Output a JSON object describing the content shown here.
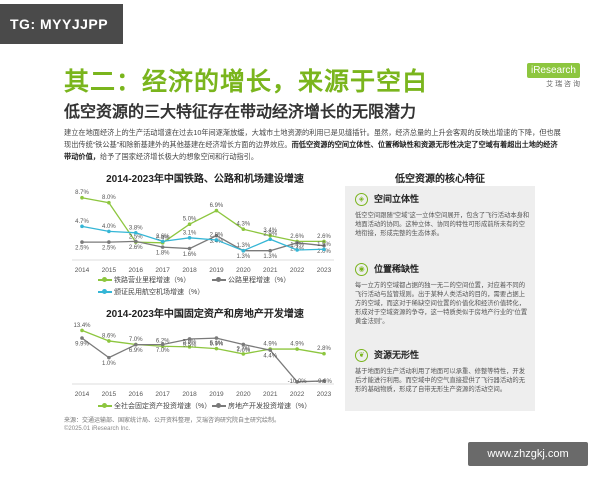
{
  "tag": "TG: MYYJJPP",
  "logo": {
    "brand": "iResearch",
    "sub": "艾 瑞 咨 询"
  },
  "title": "其二：经济的增长，来源于空白",
  "subtitle": "低空资源的三大特征存在带动经济增长的无限潜力",
  "intro": "建立在地面经济上的生产活动增速在过去10年间逐渐放缓，大城市土地资源的利用已是见缝插针。虽然，经济总量的上升会客观的反映出增速的下降，但也展现出传统“铁公基”和除新基建外的其他基建在经济增长方面的边界效应。",
  "intro_bold": "而低空资源的空间立体性、位置稀缺性和资源无形性决定了空域有着超出土地的经济带动价值，",
  "intro_tail": "给予了国家经济增长极大的想象空间和行动指引。",
  "chart1": {
    "title": "2014-2023年中国铁路、公路和机场建设增速",
    "legend": [
      "铁路营业里程增速（%）",
      "公路里程增速（%）",
      "颁证民用航空机场增速（%）"
    ]
  },
  "chart2": {
    "title": "2014-2023年中国固定资产和房地产开发增速",
    "legend": [
      "全社会固定资产投资增速（%）",
      "房地产开发投资增速（%）"
    ]
  },
  "chart_data": [
    {
      "type": "line",
      "title": "2014-2023年中国铁路、公路和机场建设增速",
      "x": [
        "2014",
        "2015",
        "2016",
        "2017",
        "2018",
        "2019",
        "2020",
        "2021",
        "2022",
        "2023"
      ],
      "series": [
        {
          "name": "铁路营业里程增速（%）",
          "color": "#8dc63f",
          "values": [
            8.7,
            8.0,
            2.5,
            2.4,
            5.0,
            6.9,
            4.3,
            3.4,
            2.6,
            2.6
          ],
          "labels": [
            "8.7%",
            "8.0%",
            "2.5%",
            "2.4%",
            "5.0%",
            "6.9%",
            "4.3%",
            "3.4%",
            "2.6%",
            "2.6%"
          ]
        },
        {
          "name": "公路里程增速（%）",
          "color": "#7a7a7a",
          "values": [
            2.5,
            2.5,
            2.6,
            1.8,
            1.6,
            3.4,
            1.3,
            1.3,
            2.4,
            2.0
          ],
          "labels": [
            "2.5%",
            "2.5%",
            "2.6%",
            "1.8%",
            "1.6%",
            "3.4%",
            "1.3%",
            "1.3%",
            "2.4%",
            "2.0%"
          ]
        },
        {
          "name": "颁证民用航空机场增速（%）",
          "color": "#35b6d6",
          "values": [
            4.7,
            4.0,
            3.8,
            2.6,
            3.1,
            2.8,
            1.3,
            2.9,
            1.4,
            1.5
          ],
          "labels": [
            "4.7%",
            "4.0%",
            "3.8%",
            "2.6%",
            "3.1%",
            "2.8%",
            "1.3%",
            "2.9%",
            "1.4%",
            "1.5%"
          ]
        }
      ]
    },
    {
      "type": "line",
      "title": "2014-2023年中国固定资产和房地产开发增速",
      "x": [
        "2014",
        "2015",
        "2016",
        "2017",
        "2018",
        "2019",
        "2020",
        "2021",
        "2022",
        "2023"
      ],
      "series": [
        {
          "name": "全社会固定资产投资增速（%）",
          "color": "#8dc63f",
          "values": [
            13.4,
            8.6,
            7.0,
            6.2,
            5.9,
            5.1,
            2.7,
            4.9,
            4.9,
            2.8
          ],
          "labels": [
            "13.4%",
            "8.6%",
            "7.0%",
            "6.2%",
            "5.9%",
            "5.1%",
            "2.7%",
            "4.9%",
            "4.9%",
            "2.8%"
          ]
        },
        {
          "name": "房地产开发投资增速（%）",
          "color": "#7a7a7a",
          "values": [
            9.9,
            1.0,
            6.9,
            7.0,
            9.5,
            9.9,
            7.0,
            4.4,
            -10.0,
            -9.6
          ],
          "labels": [
            "9.9%",
            "1.0%",
            "6.9%",
            "7.0%",
            "9.5%",
            "9.9%",
            "7.0%",
            "4.4%",
            "-10.0%",
            "-9.6%"
          ]
        }
      ]
    }
  ],
  "panel": {
    "title": "低空资源的核心特征",
    "features": [
      {
        "heading": "空间立体性",
        "body": "低空空间跟随“空域”这一立体空间展开，包含了飞行活动本身和地面活动的协同。这种立体、协同的特性可形成前所未有的空地衔接，形成完整的生态体系。"
      },
      {
        "heading": "位置稀缺性",
        "body": "每一立方的空域都占据的独一无二的空间位置，对应着不同的飞行活动与监管规则。出于某种人类活动的目的，需要占据上方的空域，而这对于稀缺空间位置的价值化和经济价值转化，形成对于空域资源的争夺，这一特质类似于房地产行业的“位置黄金法则”。"
      },
      {
        "heading": "资源无形性",
        "body": "基于地面的生产活动利用了地面可以承重、修整等特性，开发后才能进行利用。而空域中的空气直接提供了飞行器活动的无形的基础物质，形成了自带无形生产资源的活动空间。"
      }
    ]
  },
  "source": "来源：交通运输部、国家统计局、公开资料整理，艾瑞咨询研究院自主研究绘制。",
  "copyright": "©2025.01 iResearch Inc.",
  "watermark": "www.zhzgkj.com"
}
